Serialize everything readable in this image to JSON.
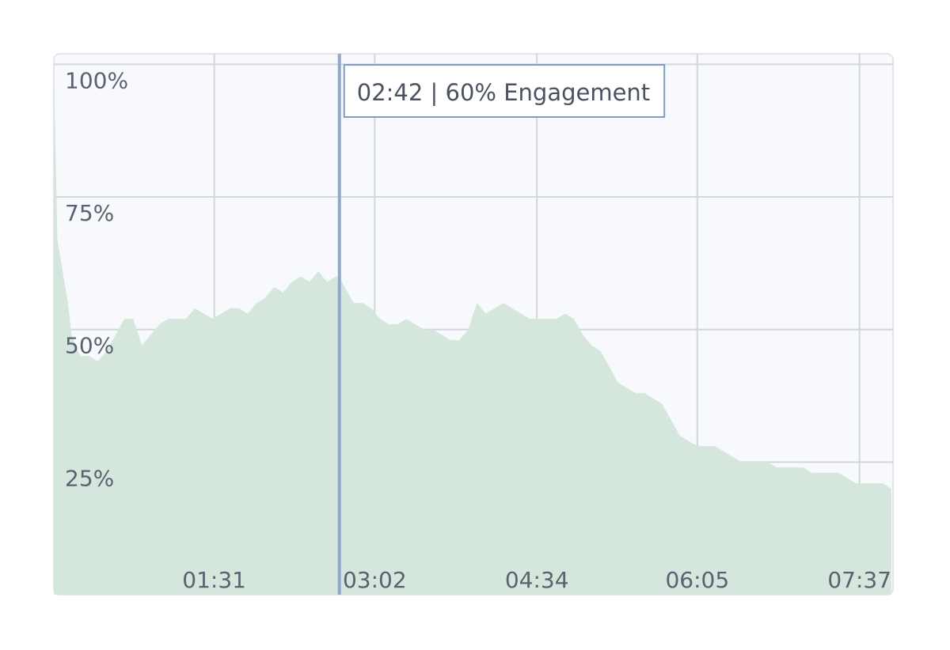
{
  "chart_data": {
    "type": "area",
    "color": "#d5e6dc",
    "grid": true,
    "xlim": [
      0,
      476
    ],
    "ylim": [
      0,
      102
    ],
    "xticks": [
      {
        "value": 91,
        "label": "01:31"
      },
      {
        "value": 182,
        "label": "03:02"
      },
      {
        "value": 274,
        "label": "04:34"
      },
      {
        "value": 365,
        "label": "06:05"
      },
      {
        "value": 457,
        "label": "07:37"
      }
    ],
    "yticks": [
      {
        "value": 25,
        "label": "25%"
      },
      {
        "value": 50,
        "label": "50%"
      },
      {
        "value": 75,
        "label": "75%"
      },
      {
        "value": 100,
        "label": "100%"
      }
    ],
    "x": [
      0,
      2,
      5,
      8,
      10,
      15,
      20,
      25,
      30,
      35,
      40,
      45,
      50,
      55,
      60,
      65,
      70,
      75,
      80,
      85,
      90,
      95,
      100,
      105,
      110,
      115,
      120,
      125,
      130,
      135,
      140,
      145,
      150,
      155,
      160,
      162,
      165,
      170,
      175,
      180,
      185,
      190,
      195,
      200,
      205,
      210,
      215,
      220,
      225,
      230,
      235,
      240,
      245,
      250,
      255,
      260,
      265,
      270,
      275,
      280,
      285,
      290,
      295,
      300,
      305,
      310,
      315,
      320,
      325,
      330,
      335,
      340,
      345,
      350,
      355,
      360,
      365,
      370,
      375,
      380,
      385,
      390,
      395,
      400,
      405,
      410,
      415,
      420,
      425,
      430,
      435,
      440,
      445,
      450,
      455,
      460,
      465,
      470,
      475
    ],
    "values": [
      100,
      67,
      61,
      55,
      49,
      45,
      45,
      44,
      46,
      49,
      52,
      52,
      47,
      49,
      51,
      52,
      52,
      52,
      54,
      53,
      52,
      53,
      54,
      54,
      53,
      55,
      56,
      58,
      57,
      59,
      60,
      59,
      61,
      59,
      60,
      60,
      58,
      55,
      55,
      54,
      52,
      51,
      51,
      52,
      51,
      50,
      50,
      49,
      48,
      48,
      50,
      55,
      53,
      54,
      55,
      54,
      53,
      52,
      52,
      52,
      52,
      53,
      52,
      49,
      47,
      46,
      43,
      40,
      39,
      38,
      38,
      37,
      36,
      33,
      30,
      29,
      28,
      28,
      28,
      27,
      26,
      25,
      25,
      25,
      25,
      24,
      24,
      24,
      24,
      23,
      23,
      23,
      23,
      22,
      21,
      21,
      21,
      21,
      20
    ],
    "cursor": {
      "x": 162,
      "label": "02:42 | 60% Engagement"
    }
  }
}
